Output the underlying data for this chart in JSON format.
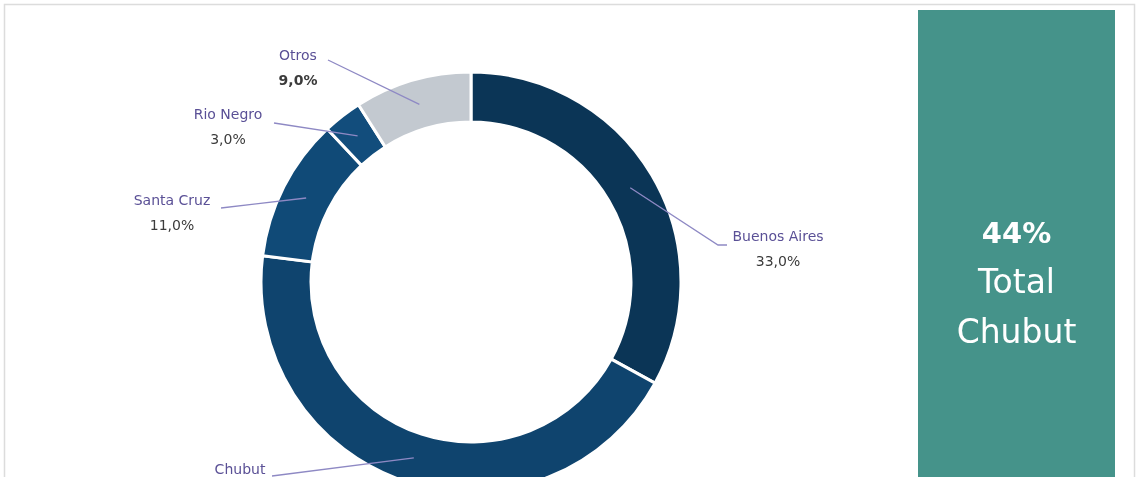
{
  "chart_data": [
    {
      "type": "donut",
      "categories": [
        "Buenos Aires",
        "Chubut",
        "Santa Cruz",
        "Rio Negro",
        "Otros"
      ],
      "values": [
        33,
        44,
        11,
        3,
        9
      ],
      "colors": [
        "#0b3556",
        "#0f446e",
        "#104a77",
        "#124d7c",
        "#c3c9d0"
      ],
      "value_labels": [
        "33,0%",
        null,
        "11,0%",
        "3,0%",
        "9,0%"
      ]
    },
    {
      "type": "other",
      "color": "#45938a",
      "annotations": [
        "44%",
        "Total Chubut"
      ]
    }
  ]
}
